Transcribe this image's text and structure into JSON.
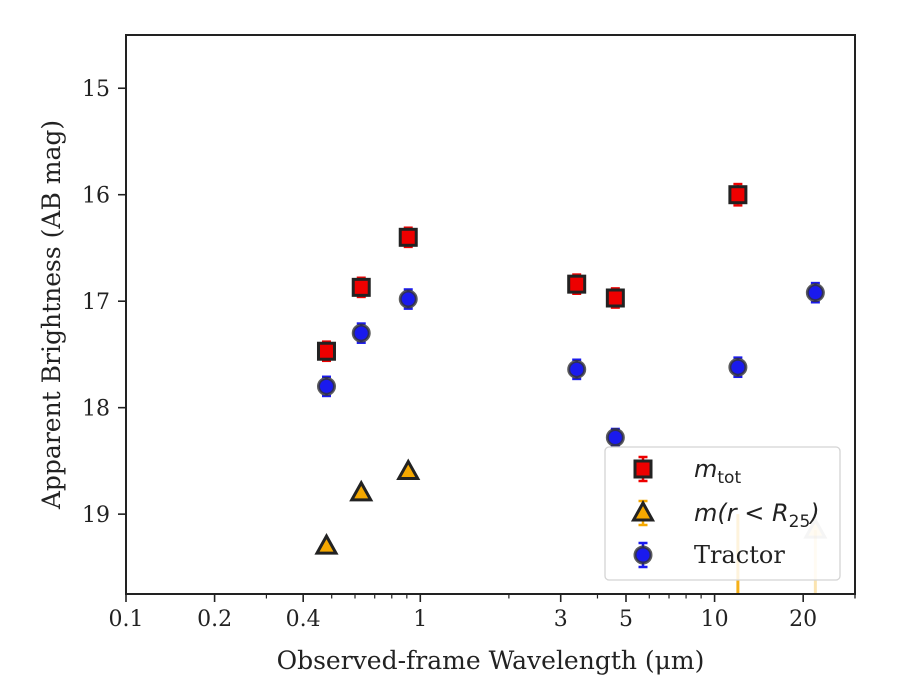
{
  "chart_data": {
    "type": "scatter",
    "title": "",
    "xlabel": "Observed-frame Wavelength (μm)",
    "ylabel": "Apparent Brightness (AB mag)",
    "xscale": "log",
    "xlim": [
      0.1,
      30
    ],
    "ylim": [
      19.75,
      14.5
    ],
    "y_inverted": true,
    "xticks": [
      {
        "value": 0.1,
        "label": "0.1"
      },
      {
        "value": 0.2,
        "label": "0.2"
      },
      {
        "value": 0.4,
        "label": "0.4"
      },
      {
        "value": 1,
        "label": "1"
      },
      {
        "value": 3,
        "label": "3"
      },
      {
        "value": 5,
        "label": "5"
      },
      {
        "value": 10,
        "label": "10"
      },
      {
        "value": 20,
        "label": "20"
      }
    ],
    "yticks": [
      {
        "value": 15,
        "label": "15"
      },
      {
        "value": 16,
        "label": "16"
      },
      {
        "value": 17,
        "label": "17"
      },
      {
        "value": 18,
        "label": "18"
      },
      {
        "value": 19,
        "label": "19"
      }
    ],
    "legend_placement": "lower-right",
    "grid": false,
    "series": [
      {
        "key": "mtot",
        "label_main": "m",
        "label_sub": "tot",
        "marker": "square",
        "color": "#ee0000",
        "edge": "#222222",
        "points": [
          {
            "x": 0.48,
            "y": 17.47,
            "err": 0.09
          },
          {
            "x": 0.63,
            "y": 16.87,
            "err": 0.09
          },
          {
            "x": 0.91,
            "y": 16.4,
            "err": 0.09
          },
          {
            "x": 3.4,
            "y": 16.84,
            "err": 0.09
          },
          {
            "x": 4.6,
            "y": 16.97,
            "err": 0.09
          },
          {
            "x": 12.0,
            "y": 16.0,
            "err": 0.1
          }
        ]
      },
      {
        "key": "mr25",
        "label_main": "m(r < R",
        "label_sub": "25",
        "label_end": ")",
        "marker": "triangle",
        "color": "#f5a800",
        "edge": "#222222",
        "points": [
          {
            "x": 0.48,
            "y": 19.3,
            "err": 0.0
          },
          {
            "x": 0.63,
            "y": 18.8,
            "err": 0.0
          },
          {
            "x": 0.91,
            "y": 18.6,
            "err": 0.0
          },
          {
            "x": 22.0,
            "y": 19.15,
            "err": 0.0,
            "faded": true
          }
        ],
        "upper_limits": [
          {
            "x": 12.0,
            "y": 19.0
          },
          {
            "x": 22.0,
            "y": 19.15
          }
        ]
      },
      {
        "key": "tractor",
        "label_main": "Tractor",
        "marker": "circle",
        "color": "#1a1aee",
        "edge": "#333333",
        "points": [
          {
            "x": 0.48,
            "y": 17.8,
            "err": 0.09
          },
          {
            "x": 0.63,
            "y": 17.3,
            "err": 0.09
          },
          {
            "x": 0.91,
            "y": 16.98,
            "err": 0.09
          },
          {
            "x": 3.4,
            "y": 17.64,
            "err": 0.09
          },
          {
            "x": 4.6,
            "y": 18.28,
            "err": 0.08
          },
          {
            "x": 12.0,
            "y": 17.62,
            "err": 0.09
          },
          {
            "x": 22.0,
            "y": 16.92,
            "err": 0.09
          }
        ]
      }
    ]
  }
}
